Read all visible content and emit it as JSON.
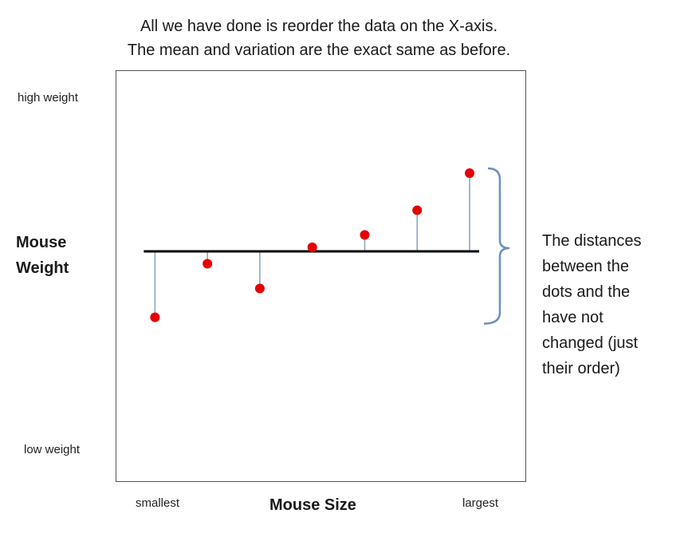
{
  "chart_data": {
    "type": "scatter",
    "title_lines": [
      "All we have done is reorder the data on the X-axis.",
      "The mean and variation are the exact same as before."
    ],
    "xlabel": "Mouse Size",
    "ylabel_lines": [
      "Mouse",
      "Weight"
    ],
    "x_tick_labels": {
      "min": "smallest",
      "max": "largest"
    },
    "y_tick_labels": {
      "max": "high weight",
      "min": "low weight"
    },
    "xlim": [
      0,
      8
    ],
    "ylim": [
      0,
      10
    ],
    "mean": 5.6,
    "points": [
      {
        "x": 1,
        "y": 4.0
      },
      {
        "x": 2,
        "y": 5.3
      },
      {
        "x": 3,
        "y": 4.7
      },
      {
        "x": 4,
        "y": 5.7
      },
      {
        "x": 5,
        "y": 6.0
      },
      {
        "x": 6,
        "y": 6.6
      },
      {
        "x": 7,
        "y": 7.5
      }
    ],
    "point_color": "#e60000",
    "residual_color": "#8aa6c8",
    "mean_line_color": "#000000",
    "bracket_color": "#6a8fc0",
    "annotation_lines": [
      "The distances",
      "between the",
      "dots and the",
      "have not",
      "changed (just",
      "their order)"
    ]
  }
}
